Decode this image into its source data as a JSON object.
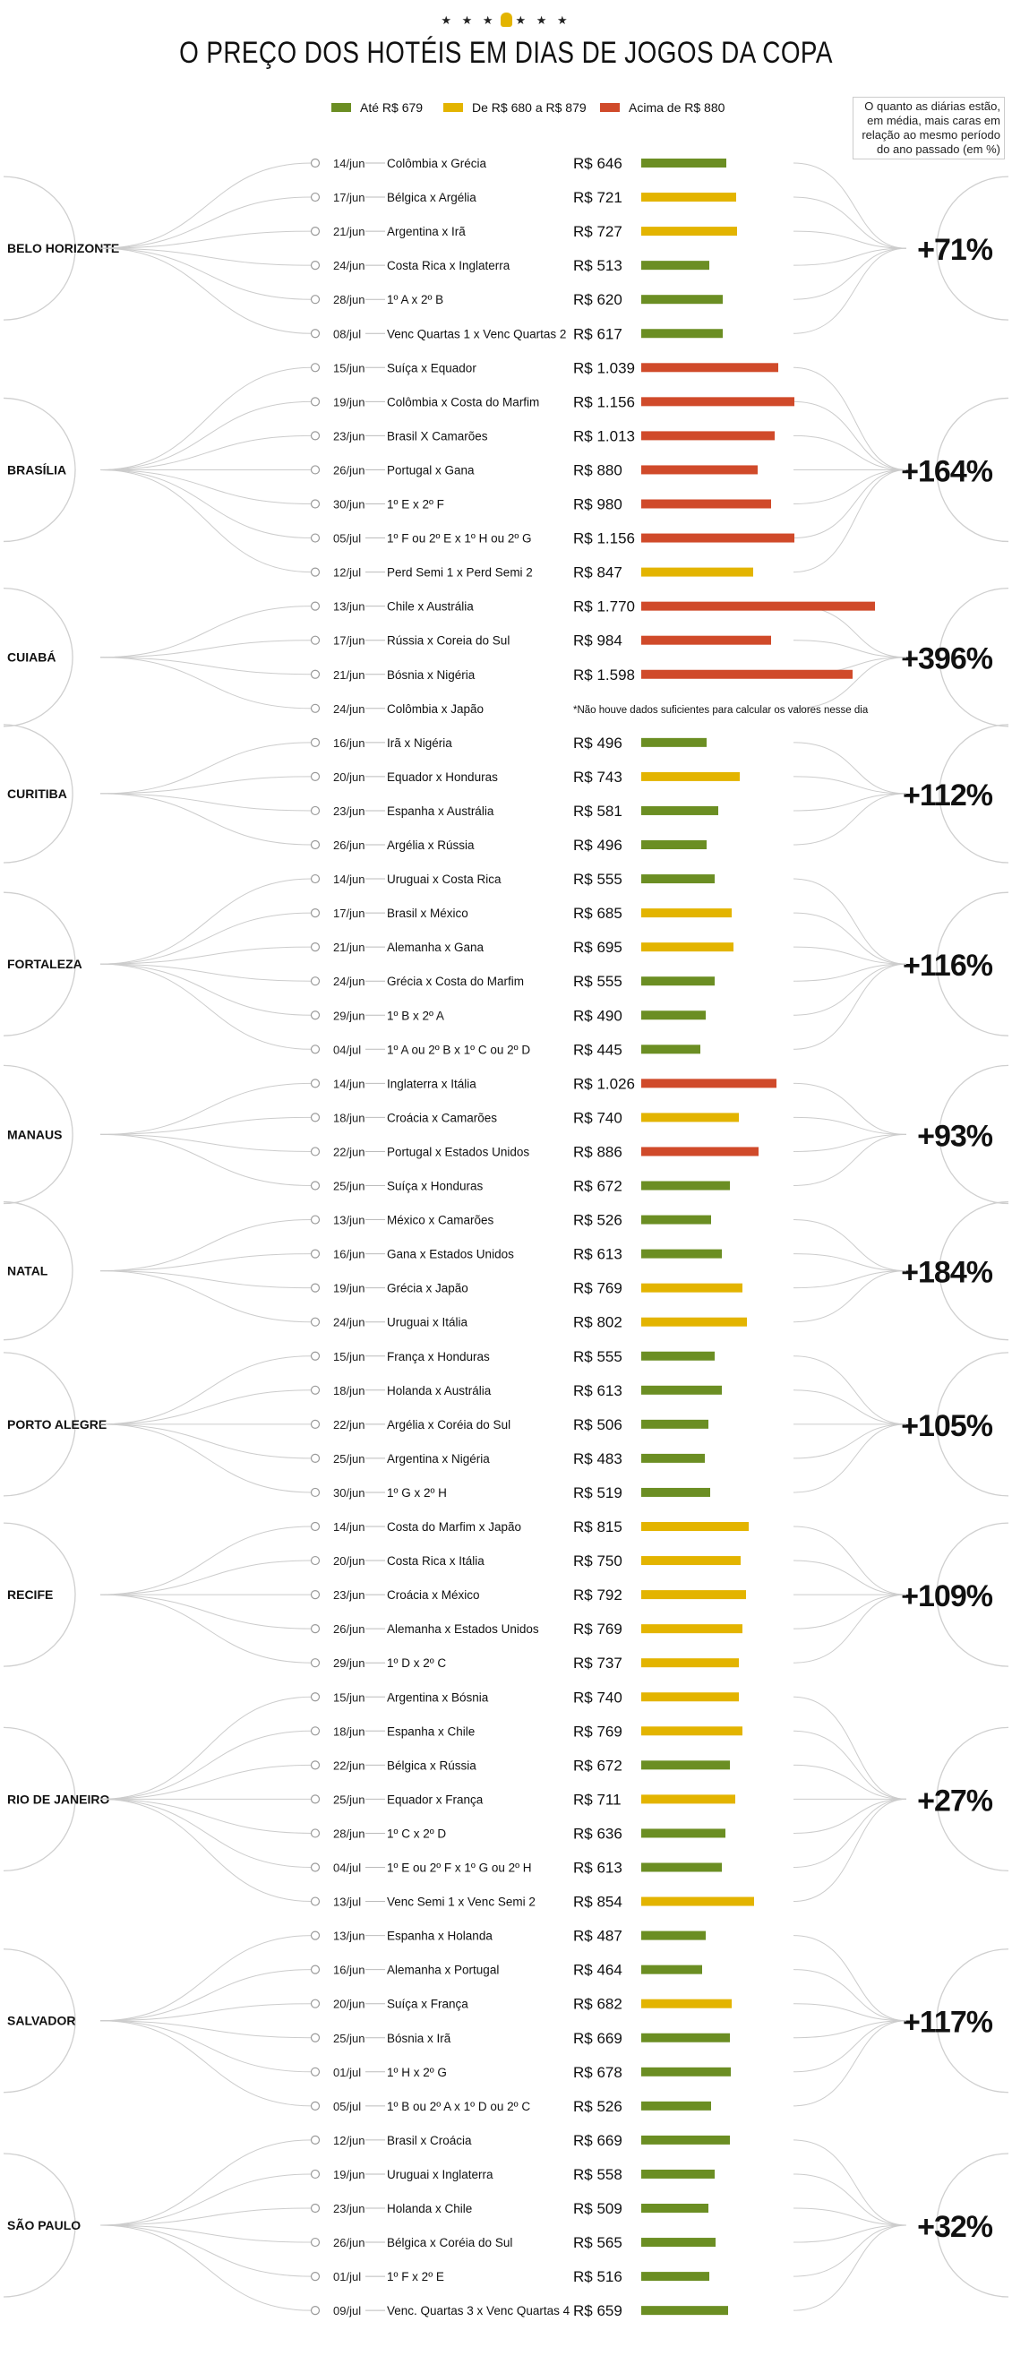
{
  "header": {
    "stars": "★ ★ ★",
    "stars_right": "★ ★ ★",
    "title": "O PREÇO DOS HOTÉIS EM DIAS DE JOGOS DA COPA"
  },
  "legend": {
    "items": [
      {
        "label": "Até R$ 679",
        "color": "#6b8e23"
      },
      {
        "label": "De R$ 680 a R$ 879",
        "color": "#e3b400"
      },
      {
        "label": "Acima de R$ 880",
        "color": "#d04a2a"
      }
    ]
  },
  "note": "O quanto as diárias estão, em média, mais caras em relação ao mesmo período do ano passado (em %)",
  "chart_data": {
    "type": "bar",
    "title": "O PREÇO DOS HOTÉIS EM DIAS DE JOGOS DA COPA",
    "price_prefix": "R$",
    "xlim": [
      0,
      1800
    ],
    "color_bins": [
      {
        "max": 679,
        "color": "#6b8e23"
      },
      {
        "max": 879,
        "color": "#e3b400"
      },
      {
        "max": 999999,
        "color": "#d04a2a"
      }
    ],
    "footnote_cuiaba": "*Não houve dados suficientes para calcular os valores nesse dia",
    "cities": [
      {
        "name": "BELO HORIZONTE",
        "increase": "+71%",
        "games": [
          {
            "date": "14/jun",
            "match": "Colômbia x Grécia",
            "price_label": "R$ 646",
            "value": 646
          },
          {
            "date": "17/jun",
            "match": "Bélgica x Argélia",
            "price_label": "R$ 721",
            "value": 721
          },
          {
            "date": "21/jun",
            "match": "Argentina x Irã",
            "price_label": "R$ 727",
            "value": 727
          },
          {
            "date": "24/jun",
            "match": "Costa Rica x Inglaterra",
            "price_label": "R$ 513",
            "value": 513
          },
          {
            "date": "28/jun",
            "match": "1º A x 2º B",
            "price_label": "R$ 620",
            "value": 620
          },
          {
            "date": "08/jul",
            "match": "Venc Quartas 1 x Venc Quartas 2",
            "price_label": "R$ 617",
            "value": 617
          }
        ]
      },
      {
        "name": "BRASÍLIA",
        "increase": "+164%",
        "games": [
          {
            "date": "15/jun",
            "match": "Suíça x Equador",
            "price_label": "R$ 1.039",
            "value": 1039
          },
          {
            "date": "19/jun",
            "match": "Colômbia x Costa do Marfim",
            "price_label": "R$ 1.156",
            "value": 1156
          },
          {
            "date": "23/jun",
            "match": "Brasil X Camarões",
            "price_label": "R$ 1.013",
            "value": 1013
          },
          {
            "date": "26/jun",
            "match": "Portugal x Gana",
            "price_label": "R$ 880",
            "value": 880
          },
          {
            "date": "30/jun",
            "match": "1º E x 2º F",
            "price_label": "R$ 980",
            "value": 980
          },
          {
            "date": "05/jul",
            "match": "1º F ou 2º E x 1º H ou 2º G",
            "price_label": "R$ 1.156",
            "value": 1156
          },
          {
            "date": "12/jul",
            "match": "Perd Semi 1 x Perd Semi 2",
            "price_label": "R$ 847",
            "value": 847
          }
        ]
      },
      {
        "name": "CUIABÁ",
        "increase": "+396%",
        "games": [
          {
            "date": "13/jun",
            "match": "Chile x Austrália",
            "price_label": "R$ 1.770",
            "value": 1770
          },
          {
            "date": "17/jun",
            "match": "Rússia x Coreia do Sul",
            "price_label": "R$ 984",
            "value": 984
          },
          {
            "date": "21/jun",
            "match": "Bósnia x Nigéria",
            "price_label": "R$ 1.598",
            "value": 1598
          },
          {
            "date": "24/jun",
            "match": "Colômbia x Japão",
            "price_label": "",
            "value": null
          }
        ]
      },
      {
        "name": "CURITIBA",
        "increase": "+112%",
        "games": [
          {
            "date": "16/jun",
            "match": "Irã x Nigéria",
            "price_label": "R$ 496",
            "value": 496
          },
          {
            "date": "20/jun",
            "match": "Equador x Honduras",
            "price_label": "R$ 743",
            "value": 743
          },
          {
            "date": "23/jun",
            "match": "Espanha x Austrália",
            "price_label": "R$ 581",
            "value": 581
          },
          {
            "date": "26/jun",
            "match": "Argélia x Rússia",
            "price_label": "R$ 496",
            "value": 496
          }
        ]
      },
      {
        "name": "FORTALEZA",
        "increase": "+116%",
        "games": [
          {
            "date": "14/jun",
            "match": "Uruguai x Costa Rica",
            "price_label": "R$ 555",
            "value": 555
          },
          {
            "date": "17/jun",
            "match": "Brasil x México",
            "price_label": "R$ 685",
            "value": 685
          },
          {
            "date": "21/jun",
            "match": "Alemanha x Gana",
            "price_label": "R$ 695",
            "value": 695
          },
          {
            "date": "24/jun",
            "match": "Grécia x Costa do Marfim",
            "price_label": "R$ 555",
            "value": 555
          },
          {
            "date": "29/jun",
            "match": "1º B x 2º A",
            "price_label": "R$ 490",
            "value": 490
          },
          {
            "date": "04/jul",
            "match": "1º A ou 2º B x 1º C ou 2º D",
            "price_label": "R$ 445",
            "value": 445
          }
        ]
      },
      {
        "name": "MANAUS",
        "increase": "+93%",
        "games": [
          {
            "date": "14/jun",
            "match": "Inglaterra x Itália",
            "price_label": "R$ 1.026",
            "value": 1026
          },
          {
            "date": "18/jun",
            "match": "Croácia x Camarões",
            "price_label": "R$ 740",
            "value": 740
          },
          {
            "date": "22/jun",
            "match": "Portugal x Estados Unidos",
            "price_label": "R$ 886",
            "value": 886
          },
          {
            "date": "25/jun",
            "match": "Suíça x Honduras",
            "price_label": "R$ 672",
            "value": 672
          }
        ]
      },
      {
        "name": "NATAL",
        "increase": "+184%",
        "games": [
          {
            "date": "13/jun",
            "match": "México x Camarões",
            "price_label": "R$ 526",
            "value": 526
          },
          {
            "date": "16/jun",
            "match": "Gana x Estados Unidos",
            "price_label": "R$ 613",
            "value": 613
          },
          {
            "date": "19/jun",
            "match": "Grécia x Japão",
            "price_label": "R$ 769",
            "value": 769
          },
          {
            "date": "24/jun",
            "match": "Uruguai x Itália",
            "price_label": "R$ 802",
            "value": 802
          }
        ]
      },
      {
        "name": "PORTO ALEGRE",
        "increase": "+105%",
        "games": [
          {
            "date": "15/jun",
            "match": "França x Honduras",
            "price_label": "R$ 555",
            "value": 555
          },
          {
            "date": "18/jun",
            "match": "Holanda x Austrália",
            "price_label": "R$ 613",
            "value": 613
          },
          {
            "date": "22/jun",
            "match": "Argélia x Coréia do Sul",
            "price_label": "R$ 506",
            "value": 506
          },
          {
            "date": "25/jun",
            "match": "Argentina x Nigéria",
            "price_label": "R$ 483",
            "value": 483
          },
          {
            "date": "30/jun",
            "match": "1º G x 2º H",
            "price_label": "R$ 519",
            "value": 519
          }
        ]
      },
      {
        "name": "RECIFE",
        "increase": "+109%",
        "games": [
          {
            "date": "14/jun",
            "match": "Costa do Marfim x Japão",
            "price_label": "R$ 815",
            "value": 815
          },
          {
            "date": "20/jun",
            "match": "Costa Rica x Itália",
            "price_label": "R$ 750",
            "value": 750
          },
          {
            "date": "23/jun",
            "match": "Croácia x México",
            "price_label": "R$ 792",
            "value": 792
          },
          {
            "date": "26/jun",
            "match": "Alemanha x Estados Unidos",
            "price_label": "R$ 769",
            "value": 769
          },
          {
            "date": "29/jun",
            "match": "1º D x 2º C",
            "price_label": "R$ 737",
            "value": 737
          }
        ]
      },
      {
        "name": "RIO DE JANEIRO",
        "increase": "+27%",
        "games": [
          {
            "date": "15/jun",
            "match": "Argentina x Bósnia",
            "price_label": "R$ 740",
            "value": 740
          },
          {
            "date": "18/jun",
            "match": "Espanha x Chile",
            "price_label": "R$ 769",
            "value": 769
          },
          {
            "date": "22/jun",
            "match": "Bélgica x Rússia",
            "price_label": "R$ 672",
            "value": 672
          },
          {
            "date": "25/jun",
            "match": "Equador x França",
            "price_label": "R$ 711",
            "value": 711
          },
          {
            "date": "28/jun",
            "match": "1º C x 2º D",
            "price_label": "R$ 636",
            "value": 636
          },
          {
            "date": "04/jul",
            "match": "1º E ou 2º F x 1º G ou 2º H",
            "price_label": "R$ 613",
            "value": 613
          },
          {
            "date": "13/jul",
            "match": "Venc Semi 1 x Venc Semi 2",
            "price_label": "R$ 854",
            "value": 854
          }
        ]
      },
      {
        "name": "SALVADOR",
        "increase": "+117%",
        "games": [
          {
            "date": "13/jun",
            "match": "Espanha x Holanda",
            "price_label": "R$ 487",
            "value": 487
          },
          {
            "date": "16/jun",
            "match": "Alemanha x Portugal",
            "price_label": "R$ 464",
            "value": 464
          },
          {
            "date": "20/jun",
            "match": "Suíça x França",
            "price_label": "R$ 682",
            "value": 682
          },
          {
            "date": "25/jun",
            "match": "Bósnia x Irã",
            "price_label": "R$ 669",
            "value": 669
          },
          {
            "date": "01/jul",
            "match": "1º H x 2º G",
            "price_label": "R$ 678",
            "value": 678
          },
          {
            "date": "05/jul",
            "match": "1º B ou 2º A x 1º D ou 2º C",
            "price_label": "R$ 526",
            "value": 526
          }
        ]
      },
      {
        "name": "SÃO PAULO",
        "increase": "+32%",
        "games": [
          {
            "date": "12/jun",
            "match": "Brasil x Croácia",
            "price_label": "R$ 669",
            "value": 669
          },
          {
            "date": "19/jun",
            "match": "Uruguai x Inglaterra",
            "price_label": "R$ 558",
            "value": 558
          },
          {
            "date": "23/jun",
            "match": "Holanda x Chile",
            "price_label": "R$ 509",
            "value": 509
          },
          {
            "date": "26/jun",
            "match": "Bélgica x Coréia do Sul",
            "price_label": "R$ 565",
            "value": 565
          },
          {
            "date": "01/jul",
            "match": "1º F x 2º E",
            "price_label": "R$ 516",
            "value": 516
          },
          {
            "date": "09/jul",
            "match": "Venc. Quartas 3 x Venc Quartas 4",
            "price_label": "R$ 659",
            "value": 659
          }
        ]
      }
    ]
  }
}
